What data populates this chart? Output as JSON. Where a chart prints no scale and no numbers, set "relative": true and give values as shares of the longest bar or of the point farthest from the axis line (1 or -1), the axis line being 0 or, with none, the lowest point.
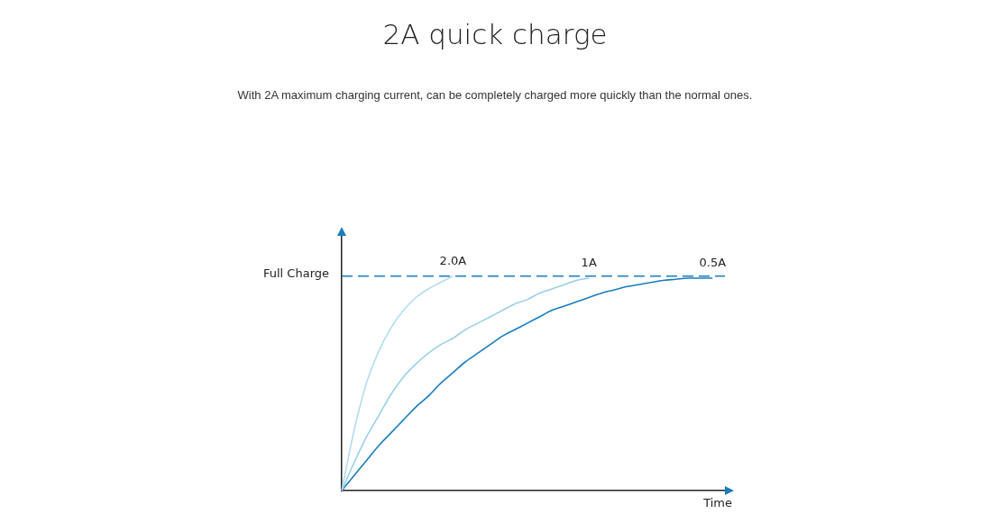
{
  "chart_data": {
    "type": "line",
    "title": "2A quick charge",
    "subtitle": "With 2A maximum charging current, can be completely charged more quickly than the normal ones.",
    "xlabel": "Time",
    "categories": [
      null,
      null,
      null,
      null,
      null,
      null,
      null,
      null,
      null,
      null,
      null,
      null,
      null,
      null,
      null,
      null,
      null,
      null,
      null,
      null,
      null,
      null,
      null,
      null,
      null,
      null,
      null,
      null,
      null,
      null,
      null,
      null
    ],
    "series": [
      {
        "name": "2.0A",
        "color": "#b3dcf0",
        "values": [
          0,
          0.28,
          0.5,
          0.65,
          0.76,
          0.84,
          0.9,
          0.94,
          0.97,
          1.0,
          null,
          null,
          null,
          null,
          null,
          null,
          null,
          null,
          null,
          null,
          null,
          null,
          null,
          null,
          null,
          null,
          null,
          null,
          null,
          null,
          null,
          null
        ]
      },
      {
        "name": "1A",
        "color": "#9acfea",
        "values": [
          0,
          0.13,
          0.25,
          0.35,
          0.45,
          0.53,
          0.59,
          0.64,
          0.68,
          0.71,
          0.75,
          0.78,
          0.81,
          0.84,
          0.87,
          0.89,
          0.92,
          0.94,
          0.96,
          0.98,
          0.99,
          null,
          null,
          null,
          null,
          null,
          null,
          null,
          null,
          null,
          null,
          null
        ]
      },
      {
        "name": "0.5A",
        "color": "#1a7dbf",
        "values": [
          0,
          0.07,
          0.14,
          0.21,
          0.27,
          0.33,
          0.39,
          0.44,
          0.5,
          0.55,
          0.6,
          0.64,
          0.68,
          0.72,
          0.75,
          0.78,
          0.81,
          0.84,
          0.86,
          0.88,
          0.9,
          0.92,
          0.935,
          0.95,
          0.96,
          0.97,
          0.98,
          0.985,
          0.99,
          0.99,
          0.99,
          null
        ]
      }
    ],
    "relative": true,
    "ref_lines": [
      {
        "axis": "y",
        "value": 1,
        "label": "Full Charge",
        "color": "#1a7dbf",
        "line_style": "dashed"
      }
    ],
    "tick_labels": false,
    "grid": false,
    "legend": false,
    "marker": "none",
    "line_style": "solid"
  }
}
